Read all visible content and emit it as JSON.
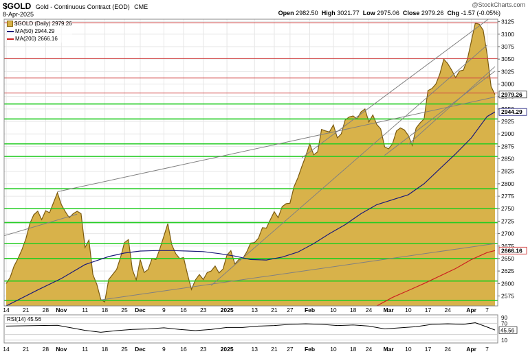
{
  "header": {
    "symbol": "$GOLD",
    "description": "Gold - Continuous Contract (EOD)",
    "exchange": "CME",
    "date": "8-Apr-2025",
    "open_label": "Open",
    "open": "2982.50",
    "high_label": "High",
    "high": "3021.77",
    "low_label": "Low",
    "low": "2975.06",
    "close_label": "Close",
    "close": "2979.26",
    "chg_label": "Chg",
    "chg": "-1.57 (-0.05%)",
    "watermark": "@StockCharts.com"
  },
  "legend": {
    "price": "$GOLD (Daily) 2979.26",
    "ma50": "MA(50) 2944.29",
    "ma200": "MA(200) 2666.16"
  },
  "colors": {
    "fill": "#d8b24a",
    "outline": "#7a5a10",
    "ma50": "#1a1a7a",
    "ma200": "#cc2020",
    "green_level": "#22cc22",
    "red_level": "#d04040",
    "trend": "#808080"
  },
  "chart_data": {
    "type": "area",
    "title": "$GOLD Gold - Continuous Contract (EOD) CME",
    "ylim": [
      2555,
      3130
    ],
    "y_ticks": [
      2575,
      2600,
      2625,
      2650,
      2675,
      2700,
      2725,
      2750,
      2775,
      2800,
      2825,
      2850,
      2875,
      2900,
      2925,
      2950,
      2975,
      3000,
      3025,
      3050,
      3075,
      3100,
      3125
    ],
    "x_labels": [
      {
        "label": "14",
        "day": 0
      },
      {
        "label": "21",
        "day": 5
      },
      {
        "label": "28",
        "day": 10
      },
      {
        "label": "Nov",
        "day": 14
      },
      {
        "label": "11",
        "day": 20
      },
      {
        "label": "18",
        "day": 25
      },
      {
        "label": "25",
        "day": 30
      },
      {
        "label": "Dec",
        "day": 34
      },
      {
        "label": "9",
        "day": 40
      },
      {
        "label": "16",
        "day": 45
      },
      {
        "label": "23",
        "day": 50
      },
      {
        "label": "2025",
        "day": 56
      },
      {
        "label": "13",
        "day": 63
      },
      {
        "label": "21",
        "day": 68
      },
      {
        "label": "27",
        "day": 72
      },
      {
        "label": "Feb",
        "day": 77
      },
      {
        "label": "10",
        "day": 83
      },
      {
        "label": "18",
        "day": 88
      },
      {
        "label": "24",
        "day": 92
      },
      {
        "label": "Mar",
        "day": 97
      },
      {
        "label": "10",
        "day": 102
      },
      {
        "label": "17",
        "day": 107
      },
      {
        "label": "24",
        "day": 112
      },
      {
        "label": "Apr",
        "day": 118
      },
      {
        "label": "7",
        "day": 122
      }
    ],
    "price": [
      [
        0,
        2600
      ],
      [
        1,
        2612
      ],
      [
        2,
        2635
      ],
      [
        3,
        2650
      ],
      [
        4,
        2668
      ],
      [
        5,
        2690
      ],
      [
        6,
        2720
      ],
      [
        7,
        2738
      ],
      [
        8,
        2745
      ],
      [
        9,
        2728
      ],
      [
        10,
        2746
      ],
      [
        11,
        2742
      ],
      [
        12,
        2762
      ],
      [
        13,
        2782
      ],
      [
        14,
        2758
      ],
      [
        15,
        2744
      ],
      [
        16,
        2732
      ],
      [
        17,
        2740
      ],
      [
        18,
        2745
      ],
      [
        19,
        2740
      ],
      [
        20,
        2672
      ],
      [
        21,
        2687
      ],
      [
        22,
        2618
      ],
      [
        23,
        2598
      ],
      [
        24,
        2568
      ],
      [
        25,
        2563
      ],
      [
        26,
        2608
      ],
      [
        27,
        2618
      ],
      [
        28,
        2628
      ],
      [
        29,
        2652
      ],
      [
        30,
        2682
      ],
      [
        31,
        2688
      ],
      [
        32,
        2628
      ],
      [
        33,
        2607
      ],
      [
        34,
        2648
      ],
      [
        35,
        2622
      ],
      [
        36,
        2628
      ],
      [
        37,
        2650
      ],
      [
        38,
        2648
      ],
      [
        39,
        2670
      ],
      [
        40,
        2695
      ],
      [
        41,
        2720
      ],
      [
        42,
        2678
      ],
      [
        43,
        2660
      ],
      [
        44,
        2650
      ],
      [
        45,
        2652
      ],
      [
        46,
        2618
      ],
      [
        47,
        2588
      ],
      [
        48,
        2607
      ],
      [
        49,
        2618
      ],
      [
        50,
        2608
      ],
      [
        51,
        2622
      ],
      [
        52,
        2625
      ],
      [
        53,
        2635
      ],
      [
        54,
        2621
      ],
      [
        55,
        2629
      ],
      [
        56,
        2657
      ],
      [
        57,
        2666
      ],
      [
        58,
        2639
      ],
      [
        59,
        2648
      ],
      [
        60,
        2650
      ],
      [
        61,
        2663
      ],
      [
        62,
        2681
      ],
      [
        63,
        2682
      ],
      [
        64,
        2691
      ],
      [
        65,
        2712
      ],
      [
        66,
        2711
      ],
      [
        67,
        2728
      ],
      [
        68,
        2744
      ],
      [
        69,
        2732
      ],
      [
        70,
        2754
      ],
      [
        71,
        2760
      ],
      [
        72,
        2761
      ],
      [
        73,
        2794
      ],
      [
        74,
        2812
      ],
      [
        75,
        2835
      ],
      [
        76,
        2856
      ],
      [
        77,
        2880
      ],
      [
        78,
        2858
      ],
      [
        79,
        2864
      ],
      [
        80,
        2909
      ],
      [
        81,
        2906
      ],
      [
        82,
        2904
      ],
      [
        83,
        2918
      ],
      [
        84,
        2892
      ],
      [
        85,
        2900
      ],
      [
        86,
        2928
      ],
      [
        87,
        2934
      ],
      [
        88,
        2936
      ],
      [
        89,
        2930
      ],
      [
        90,
        2944
      ],
      [
        91,
        2950
      ],
      [
        92,
        2924
      ],
      [
        93,
        2938
      ],
      [
        94,
        2919
      ],
      [
        95,
        2910
      ],
      [
        96,
        2874
      ],
      [
        97,
        2870
      ],
      [
        98,
        2880
      ],
      [
        99,
        2906
      ],
      [
        100,
        2912
      ],
      [
        101,
        2908
      ],
      [
        102,
        2897
      ],
      [
        103,
        2877
      ],
      [
        104,
        2912
      ],
      [
        105,
        2922
      ],
      [
        106,
        2930
      ],
      [
        107,
        2987
      ],
      [
        108,
        2991
      ],
      [
        109,
        3000
      ],
      [
        110,
        3020
      ],
      [
        111,
        3050
      ],
      [
        112,
        3041
      ],
      [
        113,
        3028
      ],
      [
        114,
        3013
      ],
      [
        115,
        3026
      ],
      [
        116,
        3028
      ],
      [
        117,
        3050
      ],
      [
        118,
        3086
      ],
      [
        119,
        3122
      ],
      [
        120,
        3120
      ],
      [
        121,
        3108
      ],
      [
        122,
        3060
      ],
      [
        123,
        2995
      ],
      [
        124,
        2979
      ]
    ],
    "ma50": [
      [
        0,
        2555
      ],
      [
        8,
        2587
      ],
      [
        14,
        2610
      ],
      [
        20,
        2638
      ],
      [
        26,
        2654
      ],
      [
        30,
        2661
      ],
      [
        34,
        2665
      ],
      [
        38,
        2666
      ],
      [
        42,
        2666
      ],
      [
        46,
        2665
      ],
      [
        50,
        2664
      ],
      [
        54,
        2660
      ],
      [
        58,
        2655
      ],
      [
        62,
        2648
      ],
      [
        66,
        2647
      ],
      [
        70,
        2653
      ],
      [
        74,
        2663
      ],
      [
        78,
        2680
      ],
      [
        82,
        2700
      ],
      [
        86,
        2718
      ],
      [
        90,
        2740
      ],
      [
        94,
        2758
      ],
      [
        98,
        2768
      ],
      [
        102,
        2778
      ],
      [
        106,
        2800
      ],
      [
        110,
        2830
      ],
      [
        114,
        2860
      ],
      [
        118,
        2892
      ],
      [
        122,
        2935
      ],
      [
        124,
        2944
      ]
    ],
    "ma200": [
      [
        94,
        2555
      ],
      [
        98,
        2572
      ],
      [
        102,
        2586
      ],
      [
        106,
        2600
      ],
      [
        110,
        2615
      ],
      [
        114,
        2630
      ],
      [
        118,
        2648
      ],
      [
        122,
        2662
      ],
      [
        124,
        2666
      ]
    ],
    "green_levels": [
      2960,
      2930,
      2880,
      2855,
      2790,
      2750,
      2722,
      2680,
      2650,
      2605,
      2566
    ],
    "red_levels": [
      3123,
      3051,
      3012,
      2982
    ],
    "trendlines": [
      [
        [
          13,
          2784
        ],
        [
          124,
          2974
        ]
      ],
      [
        [
          -3,
          2690
        ],
        [
          18,
          2739
        ]
      ],
      [
        [
          24,
          2567
        ],
        [
          124,
          2680
        ]
      ],
      [
        [
          52,
          2596
        ],
        [
          122,
          3078
        ]
      ],
      [
        [
          75,
          2852
        ],
        [
          124,
          3140
        ]
      ],
      [
        [
          96,
          2857
        ],
        [
          124,
          3026
        ]
      ],
      [
        [
          102,
          2879
        ],
        [
          124,
          3035
        ]
      ]
    ],
    "rsi": {
      "label": "RSI(14) 45.56",
      "value_label": "45.56",
      "levels": [
        90,
        70,
        30,
        10
      ],
      "tick_labels": [
        "90",
        "70",
        "10"
      ],
      "values": [
        [
          0,
          60
        ],
        [
          8,
          62
        ],
        [
          13,
          63
        ],
        [
          16,
          55
        ],
        [
          20,
          45
        ],
        [
          24,
          38
        ],
        [
          28,
          44
        ],
        [
          32,
          48
        ],
        [
          36,
          50
        ],
        [
          40,
          54
        ],
        [
          44,
          48
        ],
        [
          48,
          44
        ],
        [
          52,
          48
        ],
        [
          56,
          55
        ],
        [
          60,
          55
        ],
        [
          64,
          60
        ],
        [
          68,
          62
        ],
        [
          72,
          66
        ],
        [
          76,
          68
        ],
        [
          80,
          66
        ],
        [
          84,
          62
        ],
        [
          88,
          64
        ],
        [
          92,
          60
        ],
        [
          96,
          50
        ],
        [
          100,
          54
        ],
        [
          104,
          58
        ],
        [
          108,
          66
        ],
        [
          112,
          68
        ],
        [
          116,
          66
        ],
        [
          119,
          72
        ],
        [
          121,
          62
        ],
        [
          124,
          46
        ]
      ]
    }
  }
}
